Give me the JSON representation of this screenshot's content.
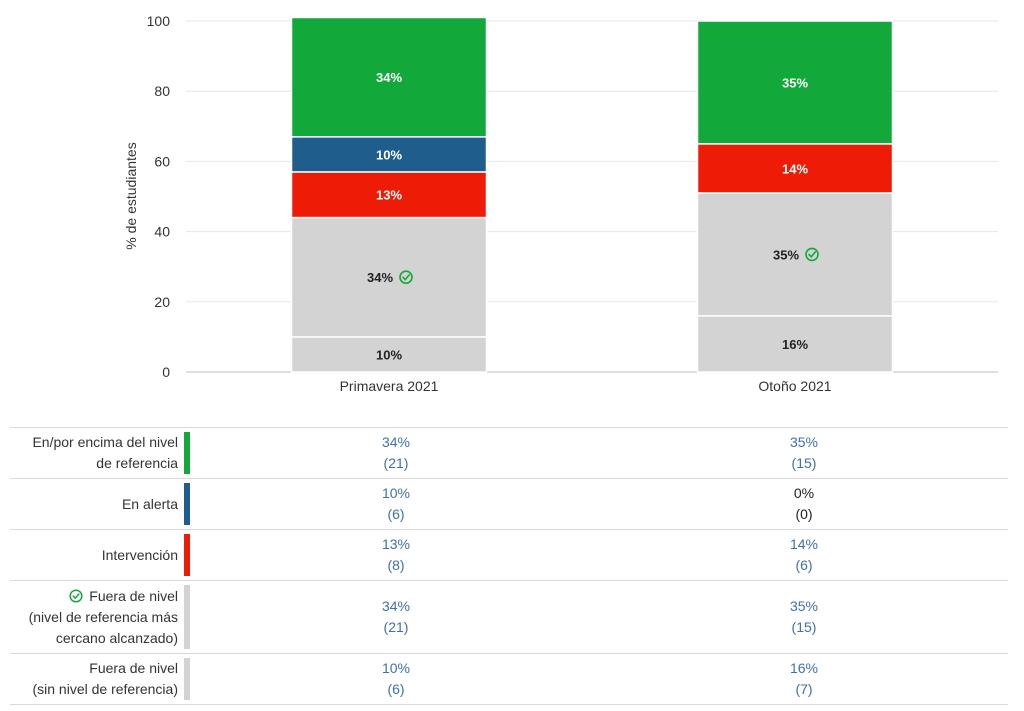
{
  "colors": {
    "above": "#12a83a",
    "alert": "#1f5e8c",
    "intervention": "#ee1c06",
    "gray": "#d3d3d3",
    "check": "#12a83a",
    "link": "#3f6fb0"
  },
  "chart_data": {
    "type": "bar",
    "stacked": true,
    "ylabel": "% de estudiantes",
    "ylim": [
      0,
      100
    ],
    "yticks": [
      "0",
      "20",
      "40",
      "60",
      "80",
      "100"
    ],
    "grid": true,
    "categories": [
      "Primavera 2021",
      "Otoño 2021"
    ],
    "series": [
      {
        "key": "below_no_ref",
        "color": "#d3d3d3",
        "values": [
          10,
          16
        ],
        "labels": [
          "10%",
          "16%"
        ],
        "label_color": "#222222",
        "check": false
      },
      {
        "key": "below_near_ref",
        "color": "#d3d3d3",
        "values": [
          34,
          35
        ],
        "labels": [
          "34%",
          "35%"
        ],
        "label_color": "#222222",
        "check": true
      },
      {
        "key": "intervention",
        "color": "#ee1c06",
        "values": [
          13,
          14
        ],
        "labels": [
          "13%",
          "14%"
        ],
        "label_color": "#ffffff",
        "check": false
      },
      {
        "key": "alert",
        "color": "#1f5e8c",
        "values": [
          10,
          0
        ],
        "labels": [
          "10%",
          ""
        ],
        "label_color": "#ffffff",
        "check": false
      },
      {
        "key": "above",
        "color": "#12a83a",
        "values": [
          34,
          35
        ],
        "labels": [
          "34%",
          "35%"
        ],
        "label_color": "#ffffff",
        "check": false
      }
    ]
  },
  "table": {
    "rows": [
      {
        "label_lines": [
          "En/por encima del nivel",
          "de referencia"
        ],
        "color": "#12a83a",
        "check": false,
        "cells": [
          {
            "pct": "34%",
            "count": "(21)",
            "link": true
          },
          {
            "pct": "35%",
            "count": "(15)",
            "link": true
          }
        ]
      },
      {
        "label_lines": [
          "En alerta"
        ],
        "color": "#1f5e8c",
        "check": false,
        "cells": [
          {
            "pct": "10%",
            "count": "(6)",
            "link": true
          },
          {
            "pct": "0%",
            "count": "(0)",
            "link": false
          }
        ]
      },
      {
        "label_lines": [
          "Intervención"
        ],
        "color": "#ee1c06",
        "check": false,
        "cells": [
          {
            "pct": "13%",
            "count": "(8)",
            "link": true
          },
          {
            "pct": "14%",
            "count": "(6)",
            "link": true
          }
        ]
      },
      {
        "label_lines": [
          "Fuera de nivel",
          "(nivel de referencia más",
          "cercano alcanzado)"
        ],
        "color": "#d3d3d3",
        "check": true,
        "cells": [
          {
            "pct": "34%",
            "count": "(21)",
            "link": true
          },
          {
            "pct": "35%",
            "count": "(15)",
            "link": true
          }
        ]
      },
      {
        "label_lines": [
          "Fuera de nivel",
          "(sin nivel de referencia)"
        ],
        "color": "#d3d3d3",
        "check": false,
        "cells": [
          {
            "pct": "10%",
            "count": "(6)",
            "link": true
          },
          {
            "pct": "16%",
            "count": "(7)",
            "link": true
          }
        ]
      }
    ]
  }
}
